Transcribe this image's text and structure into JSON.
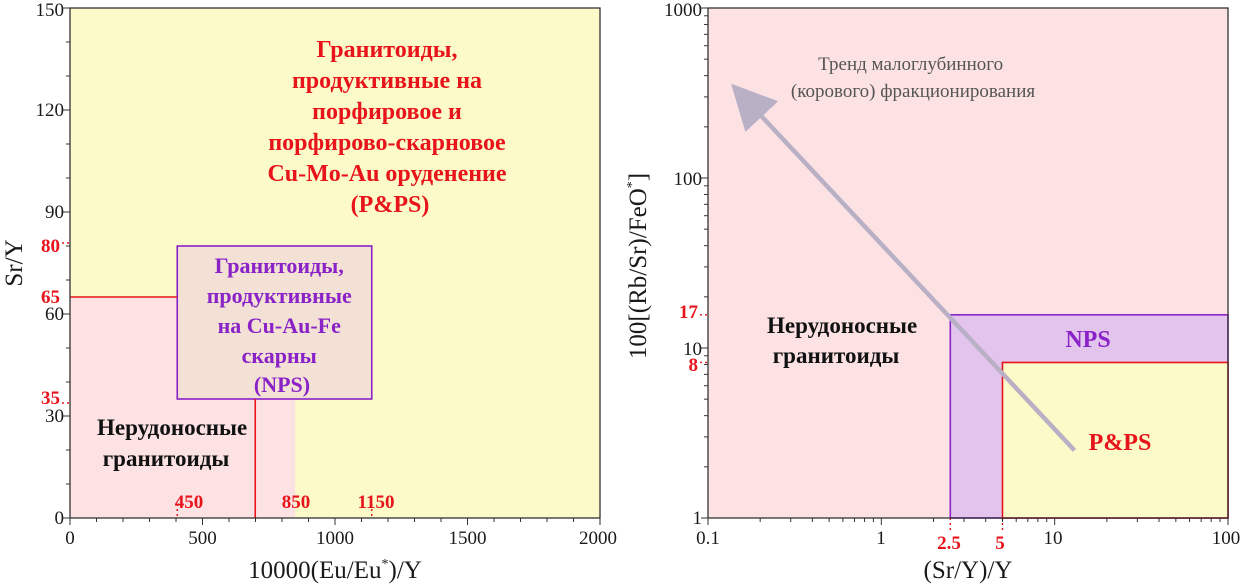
{
  "colors": {
    "productive_fill": "#fbfac8",
    "barren_fill": "#fde2e3",
    "nps_left_fill": "#f2e1d4",
    "nps_right_fill": "#e2c4ec",
    "boundary_red": "#e8141b",
    "boundary_purple": "#8a22c8",
    "trend_arrow": "#b9b0c6"
  },
  "chart_data": [
    {
      "type": "area",
      "xlabel": "10000(Eu/Eu*)/Y",
      "xlabel_base": "10000(Eu/Eu",
      "xlabel_sup": "*",
      "xlabel_tail": ")/Y",
      "ylabel": "Sr/Y",
      "xlim": [
        0,
        2000
      ],
      "ylim": [
        0,
        150
      ],
      "x_ticks": [
        "0",
        "500",
        "1000",
        "1500",
        "2000"
      ],
      "y_ticks": [
        "0",
        "30",
        "60",
        "90",
        "120",
        "150"
      ],
      "grid": false,
      "boundaries": {
        "x": [
          {
            "value": 450,
            "label": "450"
          },
          {
            "value": 850,
            "label": "850"
          },
          {
            "value": 1150,
            "label": "1150"
          }
        ],
        "y": [
          {
            "value": 35,
            "label": "35"
          },
          {
            "value": 65,
            "label": "65"
          },
          {
            "value": 80,
            "label": "80"
          }
        ]
      },
      "fields": {
        "barren": {
          "x": [
            0,
            850
          ],
          "y": [
            0,
            65
          ],
          "lines": [
            "Нерудоносные",
            "гранитоиды"
          ]
        },
        "nps": {
          "x": [
            450,
            1150
          ],
          "y": [
            35,
            80
          ],
          "lines": [
            "Гранитоиды,",
            "продуктивные",
            "на Cu-Au-Fe",
            "скарны",
            "(NPS)"
          ]
        },
        "pps": {
          "lines": [
            "Гранитоиды,",
            "продуктивные на",
            "порфировое и",
            "порфирово-скарновое",
            "Cu-Mo-Au оруденение",
            "(P&PS)"
          ]
        }
      }
    },
    {
      "type": "area",
      "xlabel": "(Sr/Y)/Y",
      "ylabel": "100[(Rb/Sr)/FeO*]",
      "ylabel_base": "100[(Rb/Sr)/FeO",
      "ylabel_sup": "*",
      "ylabel_tail": "]",
      "x_scale": "log",
      "y_scale": "log",
      "xlim": [
        0.1,
        100
      ],
      "ylim": [
        1,
        1000
      ],
      "x_ticks": [
        {
          "value": 0.1,
          "label": "0.1"
        },
        {
          "value": 1,
          "label": "1"
        },
        {
          "value": 10,
          "label": "10"
        },
        {
          "value": 100,
          "label": "100"
        }
      ],
      "y_ticks": [
        {
          "value": 1,
          "label": "1"
        },
        {
          "value": 10,
          "label": "10"
        },
        {
          "value": 100,
          "label": "100"
        },
        {
          "value": 1000,
          "label": "1000"
        }
      ],
      "grid": false,
      "boundaries": {
        "x": [
          {
            "value": 2.5,
            "label": "2.5"
          },
          {
            "value": 5,
            "label": "5"
          }
        ],
        "y": [
          {
            "value": 17,
            "label": "17"
          },
          {
            "value": 8,
            "label": "8"
          }
        ]
      },
      "fields": {
        "barren": {
          "lines": [
            "Нерудоносные",
            "гранитоиды"
          ]
        },
        "nps": {
          "x": [
            2.5,
            100
          ],
          "y": [
            1,
            17
          ],
          "label": "NPS"
        },
        "pps": {
          "x": [
            5,
            100
          ],
          "y": [
            1,
            8
          ],
          "label": "P&PS"
        }
      },
      "trend": {
        "from": {
          "x": 13,
          "y": 2.5
        },
        "to": {
          "x": 0.16,
          "y": 300
        },
        "lines": [
          "Тренд малоглубинного",
          "(корового) фракционирования"
        ]
      }
    }
  ]
}
